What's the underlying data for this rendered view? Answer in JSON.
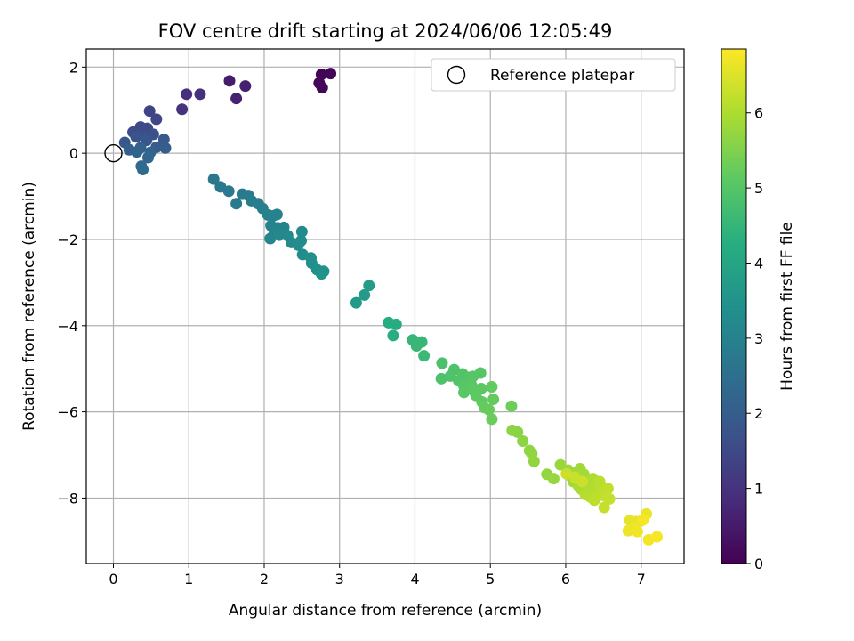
{
  "chart_data": {
    "type": "scatter",
    "title": "FOV centre drift starting at 2024/06/06 12:05:49",
    "xlabel": "Angular distance from reference (arcmin)",
    "ylabel": "Rotation from reference (arcmin)",
    "xlim": [
      -0.36,
      7.57
    ],
    "ylim": [
      -9.52,
      2.42
    ],
    "xticks": [
      "0",
      "1",
      "2",
      "3",
      "4",
      "5",
      "6",
      "7"
    ],
    "yticks": [
      "2",
      "0",
      "−2",
      "−4",
      "−6",
      "−8"
    ],
    "grid": true,
    "legend": {
      "position": "top-right",
      "label": "Reference platepar"
    },
    "reference_point": {
      "x": 0,
      "y": 0
    },
    "colorbar": {
      "label": "Hours from first FF file",
      "range": [
        0,
        6.85
      ],
      "ticks": [
        "0",
        "1",
        "2",
        "3",
        "4",
        "5",
        "6"
      ],
      "colormap": "viridis"
    },
    "points": [
      [
        2.76,
        1.83,
        0.05
      ],
      [
        2.88,
        1.85,
        0.08
      ],
      [
        2.73,
        1.63,
        0.1
      ],
      [
        2.77,
        1.52,
        0.12
      ],
      [
        1.54,
        1.68,
        0.55
      ],
      [
        1.75,
        1.56,
        0.6
      ],
      [
        1.63,
        1.27,
        0.65
      ],
      [
        0.97,
        1.37,
        0.9
      ],
      [
        1.15,
        1.37,
        0.95
      ],
      [
        0.91,
        1.02,
        1.0
      ],
      [
        0.48,
        0.98,
        1.4
      ],
      [
        0.57,
        0.79,
        1.45
      ],
      [
        0.36,
        0.61,
        1.5
      ],
      [
        0.45,
        0.58,
        1.55
      ],
      [
        0.26,
        0.49,
        1.6
      ],
      [
        0.39,
        0.42,
        1.65
      ],
      [
        0.53,
        0.44,
        1.7
      ],
      [
        0.3,
        0.38,
        1.75
      ],
      [
        0.44,
        0.3,
        1.8
      ],
      [
        0.15,
        0.25,
        1.85
      ],
      [
        0.67,
        0.32,
        1.9
      ],
      [
        0.57,
        0.14,
        1.95
      ],
      [
        0.69,
        0.12,
        2.0
      ],
      [
        0.21,
        0.08,
        2.05
      ],
      [
        0.36,
        0.13,
        2.1
      ],
      [
        0.31,
        0.03,
        2.15
      ],
      [
        0.49,
        0.02,
        2.2
      ],
      [
        0.46,
        -0.1,
        2.25
      ],
      [
        0.37,
        -0.3,
        2.3
      ],
      [
        0.39,
        -0.38,
        2.35
      ],
      [
        1.33,
        -0.6,
        2.7
      ],
      [
        1.42,
        -0.78,
        2.72
      ],
      [
        1.53,
        -0.88,
        2.75
      ],
      [
        1.63,
        -1.17,
        2.78
      ],
      [
        1.71,
        -0.95,
        2.8
      ],
      [
        1.79,
        -0.98,
        2.83
      ],
      [
        1.83,
        -1.1,
        2.86
      ],
      [
        1.92,
        -1.17,
        2.9
      ],
      [
        1.98,
        -1.28,
        2.93
      ],
      [
        2.05,
        -1.43,
        2.96
      ],
      [
        2.12,
        -1.45,
        3.0
      ],
      [
        2.17,
        -1.42,
        3.02
      ],
      [
        2.09,
        -1.68,
        3.05
      ],
      [
        2.18,
        -1.73,
        3.08
      ],
      [
        2.26,
        -1.72,
        3.1
      ],
      [
        2.08,
        -1.98,
        3.12
      ],
      [
        2.13,
        -1.88,
        3.15
      ],
      [
        2.2,
        -1.9,
        3.18
      ],
      [
        2.31,
        -1.91,
        3.2
      ],
      [
        2.36,
        -2.07,
        3.22
      ],
      [
        2.5,
        -1.82,
        3.25
      ],
      [
        2.49,
        -2.03,
        3.28
      ],
      [
        2.45,
        -2.13,
        3.3
      ],
      [
        2.51,
        -2.35,
        3.33
      ],
      [
        2.62,
        -2.43,
        3.36
      ],
      [
        2.63,
        -2.55,
        3.4
      ],
      [
        2.7,
        -2.7,
        3.42
      ],
      [
        2.79,
        -2.74,
        3.45
      ],
      [
        2.76,
        -2.8,
        3.48
      ],
      [
        3.22,
        -3.47,
        3.7
      ],
      [
        3.33,
        -3.29,
        3.72
      ],
      [
        3.39,
        -3.07,
        3.75
      ],
      [
        3.65,
        -3.93,
        4.2
      ],
      [
        3.75,
        -3.97,
        4.22
      ],
      [
        3.71,
        -4.23,
        4.25
      ],
      [
        3.97,
        -4.33,
        4.5
      ],
      [
        4.09,
        -4.38,
        4.52
      ],
      [
        4.02,
        -4.47,
        4.55
      ],
      [
        4.12,
        -4.7,
        4.58
      ],
      [
        4.36,
        -4.87,
        4.85
      ],
      [
        4.35,
        -5.23,
        4.87
      ],
      [
        4.52,
        -5.02,
        4.9
      ],
      [
        4.47,
        -5.17,
        4.92
      ],
      [
        4.63,
        -5.12,
        4.94
      ],
      [
        4.58,
        -5.28,
        4.96
      ],
      [
        4.71,
        -5.2,
        4.98
      ],
      [
        4.77,
        -5.18,
        5.0
      ],
      [
        4.87,
        -5.1,
        5.02
      ],
      [
        4.65,
        -5.4,
        5.04
      ],
      [
        4.65,
        -5.55,
        5.06
      ],
      [
        4.75,
        -5.38,
        5.08
      ],
      [
        4.79,
        -5.53,
        5.1
      ],
      [
        4.88,
        -5.46,
        5.12
      ],
      [
        4.81,
        -5.62,
        5.14
      ],
      [
        4.89,
        -5.77,
        5.16
      ],
      [
        5.02,
        -5.42,
        5.18
      ],
      [
        5.04,
        -5.71,
        5.2
      ],
      [
        4.92,
        -5.9,
        5.22
      ],
      [
        4.98,
        -5.95,
        5.24
      ],
      [
        5.02,
        -6.17,
        5.26
      ],
      [
        5.28,
        -5.87,
        5.3
      ],
      [
        5.36,
        -6.47,
        5.6
      ],
      [
        5.29,
        -6.43,
        5.62
      ],
      [
        5.43,
        -6.68,
        5.64
      ],
      [
        5.52,
        -6.9,
        5.66
      ],
      [
        5.55,
        -6.97,
        5.68
      ],
      [
        5.58,
        -7.15,
        5.7
      ],
      [
        5.75,
        -7.45,
        5.72
      ],
      [
        5.84,
        -7.55,
        5.74
      ],
      [
        5.93,
        -7.23,
        5.78
      ],
      [
        6.03,
        -7.35,
        5.8
      ],
      [
        6.07,
        -7.5,
        5.82
      ],
      [
        6.1,
        -7.62,
        5.84
      ],
      [
        6.15,
        -7.4,
        5.86
      ],
      [
        6.19,
        -7.32,
        5.88
      ],
      [
        6.24,
        -7.45,
        5.9
      ],
      [
        6.27,
        -7.58,
        5.92
      ],
      [
        6.17,
        -7.72,
        5.94
      ],
      [
        6.21,
        -7.8,
        5.96
      ],
      [
        6.3,
        -7.66,
        5.98
      ],
      [
        6.33,
        -7.78,
        6.0
      ],
      [
        6.36,
        -7.55,
        6.02
      ],
      [
        6.4,
        -7.68,
        6.04
      ],
      [
        6.44,
        -7.85,
        6.06
      ],
      [
        6.26,
        -7.92,
        6.08
      ],
      [
        6.33,
        -7.98,
        6.1
      ],
      [
        6.45,
        -7.62,
        6.12
      ],
      [
        6.48,
        -7.74,
        6.14
      ],
      [
        6.42,
        -7.96,
        6.16
      ],
      [
        6.38,
        -8.05,
        6.18
      ],
      [
        6.56,
        -7.78,
        6.2
      ],
      [
        6.52,
        -7.95,
        6.22
      ],
      [
        6.58,
        -8.02,
        6.24
      ],
      [
        6.51,
        -8.22,
        6.26
      ],
      [
        6.12,
        -7.52,
        6.28
      ],
      [
        6.01,
        -7.44,
        6.3
      ],
      [
        6.22,
        -7.62,
        6.32
      ],
      [
        6.85,
        -8.52,
        6.6
      ],
      [
        6.93,
        -8.55,
        6.62
      ],
      [
        7.0,
        -8.53,
        6.64
      ],
      [
        7.07,
        -8.37,
        6.66
      ],
      [
        6.83,
        -8.76,
        6.68
      ],
      [
        6.91,
        -8.7,
        6.7
      ],
      [
        6.95,
        -8.78,
        6.72
      ],
      [
        7.1,
        -8.97,
        6.74
      ],
      [
        7.21,
        -8.9,
        6.76
      ],
      [
        7.03,
        -8.5,
        6.78
      ]
    ]
  }
}
